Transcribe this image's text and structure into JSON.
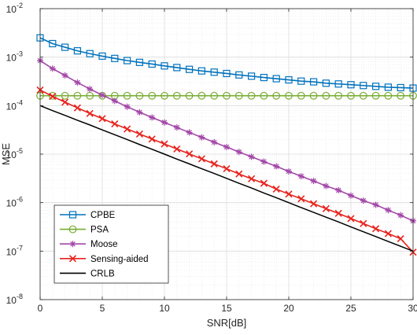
{
  "chart_data": {
    "type": "line",
    "title": "",
    "xlabel": "SNR[dB]",
    "ylabel": "MSE",
    "xlim": [
      0,
      30
    ],
    "ylim_exponents": [
      -8,
      -2
    ],
    "yscale": "log",
    "grid": true,
    "minor_grid": true,
    "legend_position": "bottom-left",
    "x_ticks": [
      "0",
      "5",
      "10",
      "15",
      "20",
      "25",
      "30"
    ],
    "y_ticks": [
      {
        "base": "10",
        "exp": "-8"
      },
      {
        "base": "10",
        "exp": "-7"
      },
      {
        "base": "10",
        "exp": "-6"
      },
      {
        "base": "10",
        "exp": "-5"
      },
      {
        "base": "10",
        "exp": "-4"
      },
      {
        "base": "10",
        "exp": "-3"
      },
      {
        "base": "10",
        "exp": "-2"
      }
    ],
    "x": [
      0,
      1,
      2,
      3,
      4,
      5,
      6,
      7,
      8,
      9,
      10,
      11,
      12,
      13,
      14,
      15,
      16,
      17,
      18,
      19,
      20,
      21,
      22,
      23,
      24,
      25,
      26,
      27,
      28,
      29,
      30
    ],
    "series": [
      {
        "name": "CPBE",
        "color": "#0072BD",
        "marker": "square",
        "y": [
          0.0025,
          0.0019,
          0.0016,
          0.00135,
          0.00118,
          0.00105,
          0.00094,
          0.00085,
          0.00078,
          0.00072,
          0.00066,
          0.00061,
          0.00056,
          0.00052,
          0.00049,
          0.00046,
          0.00043,
          0.000405,
          0.00038,
          0.00036,
          0.00034,
          0.00032,
          0.00031,
          0.00029,
          0.00028,
          0.00027,
          0.00026,
          0.00025,
          0.00024,
          0.000235,
          0.00023
        ]
      },
      {
        "name": "PSA",
        "color": "#77AC30",
        "marker": "circle",
        "y": [
          0.00016,
          0.00016,
          0.00016,
          0.00016,
          0.00016,
          0.00016,
          0.00016,
          0.00016,
          0.00016,
          0.00016,
          0.00016,
          0.00016,
          0.00016,
          0.00016,
          0.00016,
          0.00016,
          0.00016,
          0.00016,
          0.00016,
          0.00016,
          0.00016,
          0.00016,
          0.00016,
          0.00016,
          0.00016,
          0.00016,
          0.00016,
          0.00016,
          0.00016,
          0.00016,
          0.00016
        ]
      },
      {
        "name": "Moose",
        "color": "#A347A8",
        "marker": "asterisk",
        "y": [
          0.00085,
          0.00058,
          0.00042,
          0.0003,
          0.00022,
          0.000165,
          0.000125,
          9.5e-05,
          7.3e-05,
          5.7e-05,
          4.5e-05,
          3.55e-05,
          2.8e-05,
          2.22e-05,
          1.76e-05,
          1.4e-05,
          1.11e-05,
          8.8e-06,
          7e-06,
          5.6e-06,
          4.4e-06,
          3.5e-06,
          2.8e-06,
          2.2e-06,
          1.8e-06,
          1.4e-06,
          1.1e-06,
          9e-07,
          7e-07,
          5.5e-07,
          4.2e-07
        ]
      },
      {
        "name": "Sensing-aided",
        "color": "#E8221C",
        "marker": "x",
        "y": [
          0.00021,
          0.000155,
          0.000118,
          9e-05,
          6.9e-05,
          5.4e-05,
          4.2e-05,
          3.3e-05,
          2.6e-05,
          2.05e-05,
          1.62e-05,
          1.28e-05,
          1.01e-05,
          8e-06,
          6.3e-06,
          5e-06,
          3.9e-06,
          3.1e-06,
          2.5e-06,
          1.9e-06,
          1.5e-06,
          1.2e-06,
          9.5e-07,
          7.5e-07,
          6e-07,
          4.7e-07,
          3.7e-07,
          2.9e-07,
          2.3e-07,
          1.8e-07,
          9.5e-08
        ]
      },
      {
        "name": "CRLB",
        "color": "#000000",
        "marker": "none",
        "y": [
          0.0001,
          7.9e-05,
          6.3e-05,
          5e-05,
          4e-05,
          3.16e-05,
          2.51e-05,
          2e-05,
          1.58e-05,
          1.26e-05,
          1e-05,
          7.9e-06,
          6.3e-06,
          5e-06,
          4e-06,
          3.16e-06,
          2.51e-06,
          2e-06,
          1.58e-06,
          1.26e-06,
          1e-06,
          7.9e-07,
          6.3e-07,
          5e-07,
          4e-07,
          3.16e-07,
          2.51e-07,
          2e-07,
          1.58e-07,
          1.26e-07,
          1e-07
        ]
      }
    ]
  }
}
